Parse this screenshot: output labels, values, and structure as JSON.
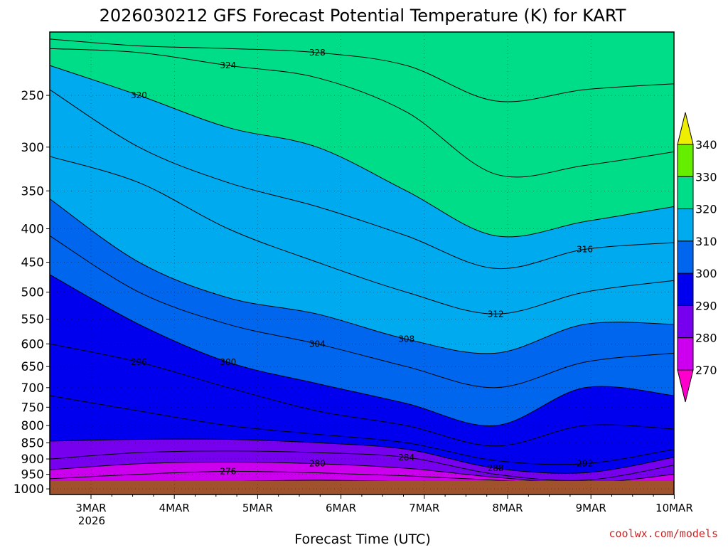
{
  "chart_data": {
    "type": "heatmap",
    "title": "2026030212 GFS Forecast Potential Temperature (K) for KART",
    "xlabel": "Forecast Time (UTC)",
    "ylabel": "",
    "credit": "coolwx.com/models",
    "x_start_year": "2026",
    "x_ticks": [
      "3MAR",
      "4MAR",
      "5MAR",
      "6MAR",
      "7MAR",
      "8MAR",
      "9MAR",
      "10MAR"
    ],
    "y_ticks": [
      250,
      300,
      350,
      400,
      450,
      500,
      550,
      600,
      650,
      700,
      750,
      800,
      850,
      900,
      950,
      1000
    ],
    "y_scale": "log-pressure",
    "ylim": [
      200,
      1020
    ],
    "grid": true,
    "colorbar": {
      "ticks": [
        270,
        280,
        290,
        300,
        310,
        320,
        330,
        340
      ],
      "bins": [
        {
          "range": "<270",
          "color": "#ff00cc"
        },
        {
          "range": "270-280",
          "color": "#cc00ee"
        },
        {
          "range": "280-290",
          "color": "#7700ee"
        },
        {
          "range": "290-300",
          "color": "#0000ee"
        },
        {
          "range": "300-310",
          "color": "#0066ee"
        },
        {
          "range": "310-320",
          "color": "#00aaee"
        },
        {
          "range": "320-330",
          "color": "#00dd88"
        },
        {
          "range": "330-340",
          "color": "#66ee00"
        },
        {
          "range": ">340",
          "color": "#eeee00"
        }
      ]
    },
    "contour_interval": 2,
    "contour_labels": [
      272,
      276,
      280,
      284,
      288,
      292,
      296,
      300,
      304,
      308,
      312,
      316,
      320,
      324,
      328
    ],
    "isentropes": [
      {
        "theta": 272,
        "pressure": [
          995,
          985,
          975,
          970,
          975,
          980,
          985,
          990
        ]
      },
      {
        "theta": 276,
        "pressure": [
          965,
          950,
          940,
          945,
          955,
          970,
          985,
          975
        ]
      },
      {
        "theta": 280,
        "pressure": [
          935,
          915,
          910,
          915,
          930,
          960,
          980,
          950
        ]
      },
      {
        "theta": 284,
        "pressure": [
          900,
          880,
          875,
          880,
          895,
          950,
          970,
          920
        ]
      },
      {
        "theta": 288,
        "pressure": [
          845,
          840,
          840,
          850,
          870,
          930,
          945,
          895
        ]
      },
      {
        "theta": 292,
        "pressure": [
          720,
          760,
          800,
          825,
          850,
          905,
          915,
          870
        ]
      },
      {
        "theta": 296,
        "pressure": [
          600,
          640,
          700,
          760,
          800,
          860,
          800,
          810
        ]
      },
      {
        "theta": 300,
        "pressure": [
          470,
          560,
          640,
          690,
          740,
          800,
          700,
          720
        ]
      },
      {
        "theta": 304,
        "pressure": [
          410,
          500,
          560,
          600,
          650,
          700,
          640,
          620
        ]
      },
      {
        "theta": 308,
        "pressure": [
          360,
          450,
          510,
          540,
          590,
          620,
          560,
          560
        ]
      },
      {
        "theta": 312,
        "pressure": [
          310,
          340,
          400,
          450,
          500,
          540,
          500,
          480
        ]
      },
      {
        "theta": 316,
        "pressure": [
          245,
          300,
          340,
          370,
          410,
          460,
          430,
          420
        ]
      },
      {
        "theta": 320,
        "pressure": [
          225,
          250,
          280,
          300,
          350,
          410,
          390,
          370
        ]
      },
      {
        "theta": 324,
        "pressure": [
          212,
          215,
          225,
          235,
          265,
          330,
          320,
          305
        ]
      },
      {
        "theta": 328,
        "pressure": [
          205,
          210,
          212,
          215,
          225,
          255,
          245,
          240
        ]
      }
    ]
  }
}
